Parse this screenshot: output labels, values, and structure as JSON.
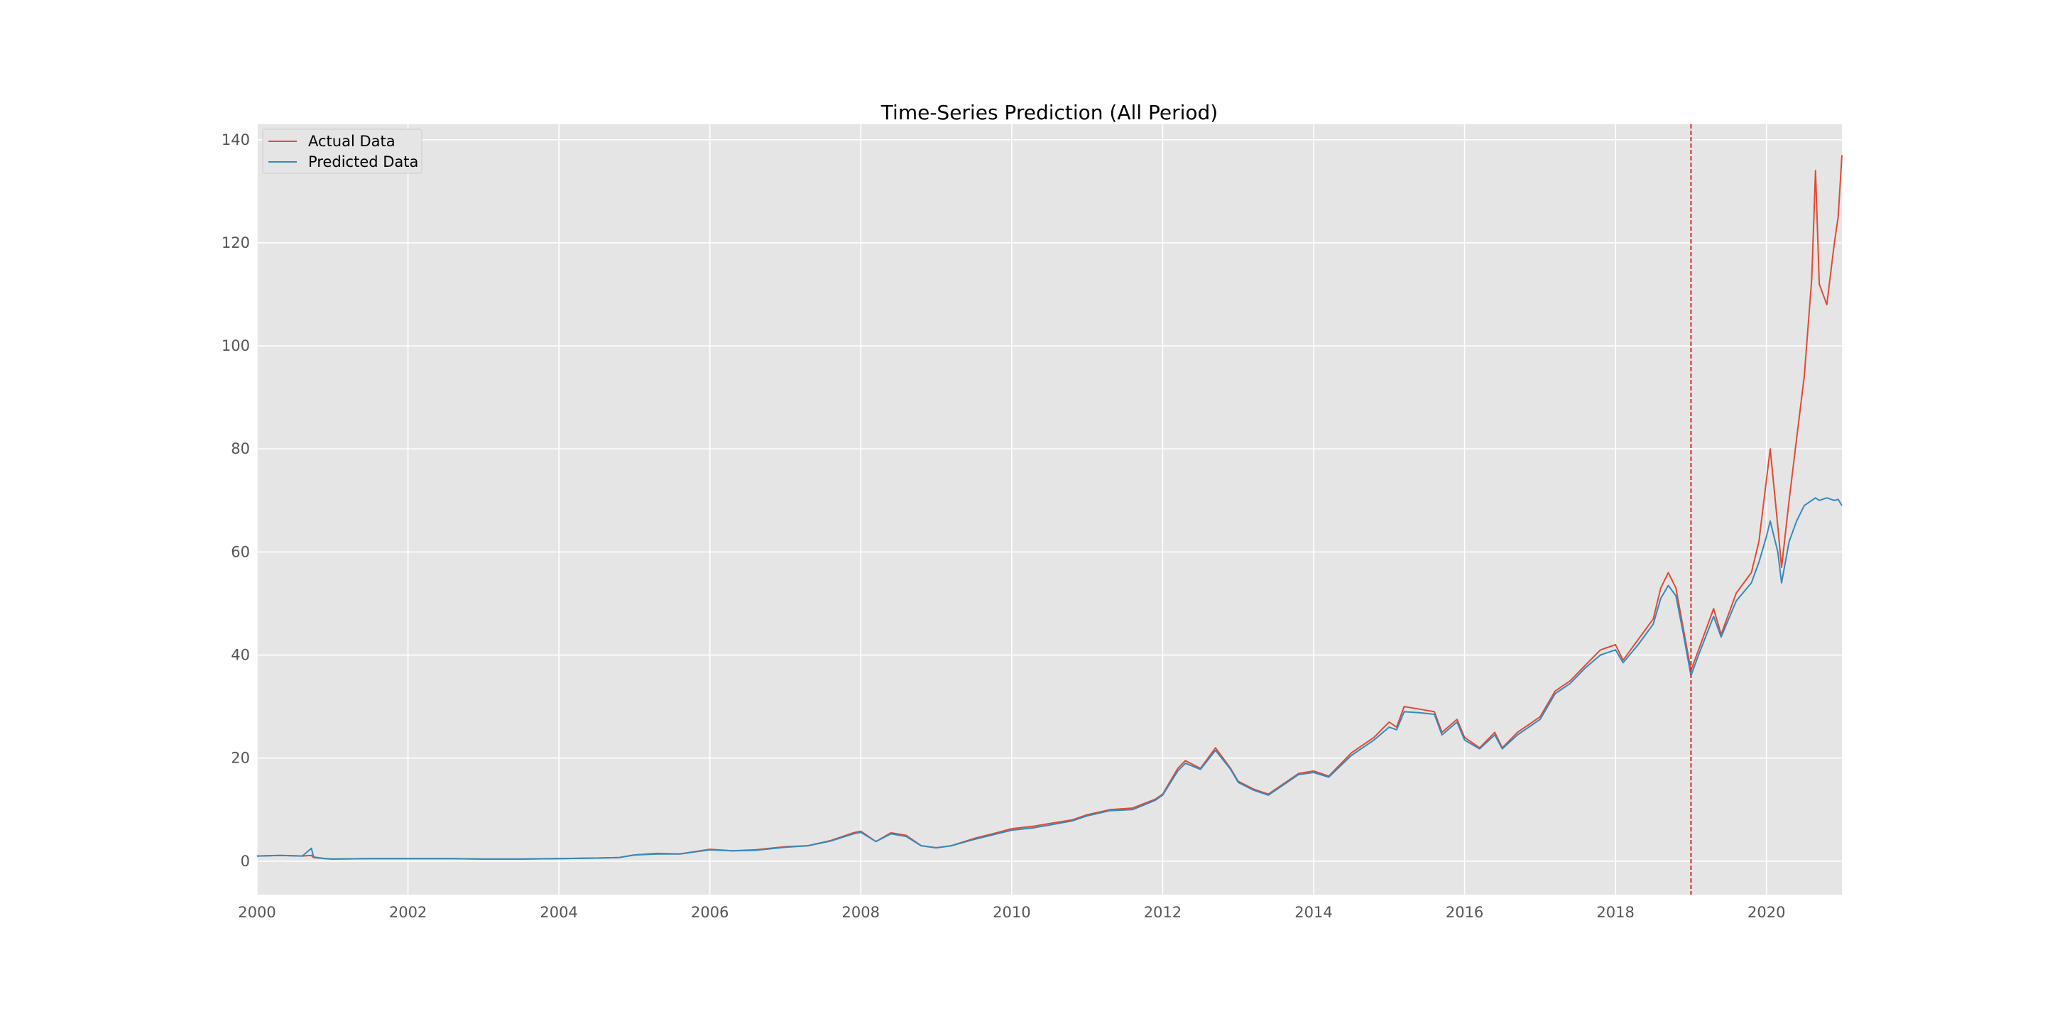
{
  "chart_data": {
    "type": "line",
    "title": "Time-Series Prediction (All Period)",
    "xlabel": "",
    "ylabel": "",
    "xlim": [
      2000,
      2021
    ],
    "ylim": [
      -6.5,
      143
    ],
    "x_ticks": [
      2000,
      2002,
      2004,
      2006,
      2008,
      2010,
      2012,
      2014,
      2016,
      2018,
      2020
    ],
    "y_ticks": [
      0,
      20,
      40,
      60,
      80,
      100,
      120,
      140
    ],
    "grid": true,
    "legend_position": "top-left",
    "split_line": {
      "x": 2019.0,
      "color": "#d62728",
      "style": "dashed"
    },
    "series": [
      {
        "name": "Actual Data",
        "color": "#E24A33",
        "points": [
          [
            2000.0,
            1.0
          ],
          [
            2000.3,
            1.1
          ],
          [
            2000.6,
            1.0
          ],
          [
            2000.72,
            1.1
          ],
          [
            2000.75,
            0.7
          ],
          [
            2000.9,
            0.5
          ],
          [
            2001.0,
            0.4
          ],
          [
            2001.5,
            0.5
          ],
          [
            2002.0,
            0.5
          ],
          [
            2002.5,
            0.5
          ],
          [
            2003.0,
            0.4
          ],
          [
            2003.5,
            0.4
          ],
          [
            2004.0,
            0.5
          ],
          [
            2004.5,
            0.6
          ],
          [
            2004.8,
            0.7
          ],
          [
            2005.0,
            1.2
          ],
          [
            2005.3,
            1.5
          ],
          [
            2005.6,
            1.4
          ],
          [
            2006.0,
            2.3
          ],
          [
            2006.3,
            2.0
          ],
          [
            2006.6,
            2.2
          ],
          [
            2007.0,
            2.8
          ],
          [
            2007.3,
            3.0
          ],
          [
            2007.6,
            4.0
          ],
          [
            2007.9,
            5.5
          ],
          [
            2008.0,
            5.8
          ],
          [
            2008.2,
            3.8
          ],
          [
            2008.4,
            5.5
          ],
          [
            2008.6,
            5.0
          ],
          [
            2008.8,
            3.0
          ],
          [
            2009.0,
            2.6
          ],
          [
            2009.2,
            3.0
          ],
          [
            2009.5,
            4.4
          ],
          [
            2009.8,
            5.5
          ],
          [
            2010.0,
            6.3
          ],
          [
            2010.3,
            6.8
          ],
          [
            2010.5,
            7.3
          ],
          [
            2010.8,
            8.0
          ],
          [
            2011.0,
            9.0
          ],
          [
            2011.3,
            10.0
          ],
          [
            2011.6,
            10.3
          ],
          [
            2011.9,
            12.0
          ],
          [
            2012.0,
            13.0
          ],
          [
            2012.2,
            18.0
          ],
          [
            2012.3,
            19.5
          ],
          [
            2012.5,
            18.0
          ],
          [
            2012.7,
            22.0
          ],
          [
            2012.9,
            18.0
          ],
          [
            2013.0,
            15.5
          ],
          [
            2013.2,
            14.0
          ],
          [
            2013.4,
            13.0
          ],
          [
            2013.6,
            15.0
          ],
          [
            2013.8,
            17.0
          ],
          [
            2014.0,
            17.5
          ],
          [
            2014.2,
            16.5
          ],
          [
            2014.5,
            21.0
          ],
          [
            2014.8,
            24.0
          ],
          [
            2015.0,
            27.0
          ],
          [
            2015.1,
            26.0
          ],
          [
            2015.2,
            30.0
          ],
          [
            2015.4,
            29.5
          ],
          [
            2015.6,
            29.0
          ],
          [
            2015.7,
            25.0
          ],
          [
            2015.9,
            27.5
          ],
          [
            2016.0,
            24.0
          ],
          [
            2016.2,
            22.0
          ],
          [
            2016.4,
            25.0
          ],
          [
            2016.5,
            22.0
          ],
          [
            2016.7,
            25.0
          ],
          [
            2016.9,
            27.0
          ],
          [
            2017.0,
            28.0
          ],
          [
            2017.2,
            33.0
          ],
          [
            2017.4,
            35.0
          ],
          [
            2017.6,
            38.0
          ],
          [
            2017.8,
            41.0
          ],
          [
            2018.0,
            42.0
          ],
          [
            2018.1,
            39.0
          ],
          [
            2018.3,
            43.0
          ],
          [
            2018.5,
            47.0
          ],
          [
            2018.6,
            53.0
          ],
          [
            2018.7,
            56.0
          ],
          [
            2018.8,
            53.0
          ],
          [
            2018.9,
            45.0
          ],
          [
            2019.0,
            37.0
          ],
          [
            2019.1,
            41.0
          ],
          [
            2019.3,
            49.0
          ],
          [
            2019.4,
            44.0
          ],
          [
            2019.6,
            52.0
          ],
          [
            2019.8,
            56.0
          ],
          [
            2019.9,
            62.0
          ],
          [
            2020.0,
            74.0
          ],
          [
            2020.05,
            80.0
          ],
          [
            2020.15,
            65.0
          ],
          [
            2020.2,
            57.0
          ],
          [
            2020.3,
            70.0
          ],
          [
            2020.4,
            82.0
          ],
          [
            2020.5,
            94.0
          ],
          [
            2020.6,
            113.0
          ],
          [
            2020.65,
            134.0
          ],
          [
            2020.7,
            112.0
          ],
          [
            2020.8,
            108.0
          ],
          [
            2020.9,
            120.0
          ],
          [
            2020.95,
            125.0
          ],
          [
            2021.0,
            137.0
          ]
        ]
      },
      {
        "name": "Predicted Data",
        "color": "#348ABD",
        "points": [
          [
            2000.0,
            1.0
          ],
          [
            2000.3,
            1.1
          ],
          [
            2000.6,
            1.0
          ],
          [
            2000.72,
            2.5
          ],
          [
            2000.75,
            0.8
          ],
          [
            2000.9,
            0.5
          ],
          [
            2001.0,
            0.4
          ],
          [
            2001.5,
            0.5
          ],
          [
            2002.0,
            0.5
          ],
          [
            2002.5,
            0.5
          ],
          [
            2003.0,
            0.4
          ],
          [
            2003.5,
            0.4
          ],
          [
            2004.0,
            0.5
          ],
          [
            2004.5,
            0.6
          ],
          [
            2004.8,
            0.7
          ],
          [
            2005.0,
            1.2
          ],
          [
            2005.3,
            1.4
          ],
          [
            2005.6,
            1.4
          ],
          [
            2006.0,
            2.2
          ],
          [
            2006.3,
            2.0
          ],
          [
            2006.6,
            2.1
          ],
          [
            2007.0,
            2.7
          ],
          [
            2007.3,
            3.0
          ],
          [
            2007.6,
            3.9
          ],
          [
            2007.9,
            5.3
          ],
          [
            2008.0,
            5.6
          ],
          [
            2008.2,
            3.8
          ],
          [
            2008.4,
            5.3
          ],
          [
            2008.6,
            4.8
          ],
          [
            2008.8,
            3.0
          ],
          [
            2009.0,
            2.6
          ],
          [
            2009.2,
            3.0
          ],
          [
            2009.5,
            4.2
          ],
          [
            2009.8,
            5.3
          ],
          [
            2010.0,
            6.0
          ],
          [
            2010.3,
            6.5
          ],
          [
            2010.5,
            7.0
          ],
          [
            2010.8,
            7.8
          ],
          [
            2011.0,
            8.8
          ],
          [
            2011.3,
            9.8
          ],
          [
            2011.6,
            10.0
          ],
          [
            2011.9,
            11.8
          ],
          [
            2012.0,
            12.8
          ],
          [
            2012.2,
            17.5
          ],
          [
            2012.3,
            19.0
          ],
          [
            2012.5,
            17.8
          ],
          [
            2012.7,
            21.5
          ],
          [
            2012.9,
            17.8
          ],
          [
            2013.0,
            15.3
          ],
          [
            2013.2,
            13.8
          ],
          [
            2013.4,
            12.8
          ],
          [
            2013.6,
            14.8
          ],
          [
            2013.8,
            16.8
          ],
          [
            2014.0,
            17.2
          ],
          [
            2014.2,
            16.3
          ],
          [
            2014.5,
            20.5
          ],
          [
            2014.8,
            23.5
          ],
          [
            2015.0,
            26.0
          ],
          [
            2015.1,
            25.5
          ],
          [
            2015.2,
            29.0
          ],
          [
            2015.4,
            28.8
          ],
          [
            2015.6,
            28.5
          ],
          [
            2015.7,
            24.5
          ],
          [
            2015.9,
            27.0
          ],
          [
            2016.0,
            23.5
          ],
          [
            2016.2,
            21.8
          ],
          [
            2016.4,
            24.5
          ],
          [
            2016.5,
            21.8
          ],
          [
            2016.7,
            24.5
          ],
          [
            2016.9,
            26.5
          ],
          [
            2017.0,
            27.5
          ],
          [
            2017.2,
            32.5
          ],
          [
            2017.4,
            34.5
          ],
          [
            2017.6,
            37.5
          ],
          [
            2017.8,
            40.0
          ],
          [
            2018.0,
            41.0
          ],
          [
            2018.1,
            38.5
          ],
          [
            2018.3,
            42.0
          ],
          [
            2018.5,
            46.0
          ],
          [
            2018.6,
            51.0
          ],
          [
            2018.7,
            53.5
          ],
          [
            2018.8,
            51.5
          ],
          [
            2018.9,
            44.0
          ],
          [
            2019.0,
            36.0
          ],
          [
            2019.1,
            40.0
          ],
          [
            2019.3,
            47.5
          ],
          [
            2019.4,
            43.5
          ],
          [
            2019.6,
            50.5
          ],
          [
            2019.8,
            54.0
          ],
          [
            2019.9,
            58.0
          ],
          [
            2020.0,
            63.0
          ],
          [
            2020.05,
            66.0
          ],
          [
            2020.15,
            60.0
          ],
          [
            2020.2,
            54.0
          ],
          [
            2020.3,
            62.0
          ],
          [
            2020.4,
            66.0
          ],
          [
            2020.5,
            69.0
          ],
          [
            2020.6,
            70.0
          ],
          [
            2020.65,
            70.5
          ],
          [
            2020.7,
            70.0
          ],
          [
            2020.8,
            70.5
          ],
          [
            2020.9,
            70.0
          ],
          [
            2020.95,
            70.2
          ],
          [
            2021.0,
            69.0
          ]
        ]
      }
    ]
  }
}
